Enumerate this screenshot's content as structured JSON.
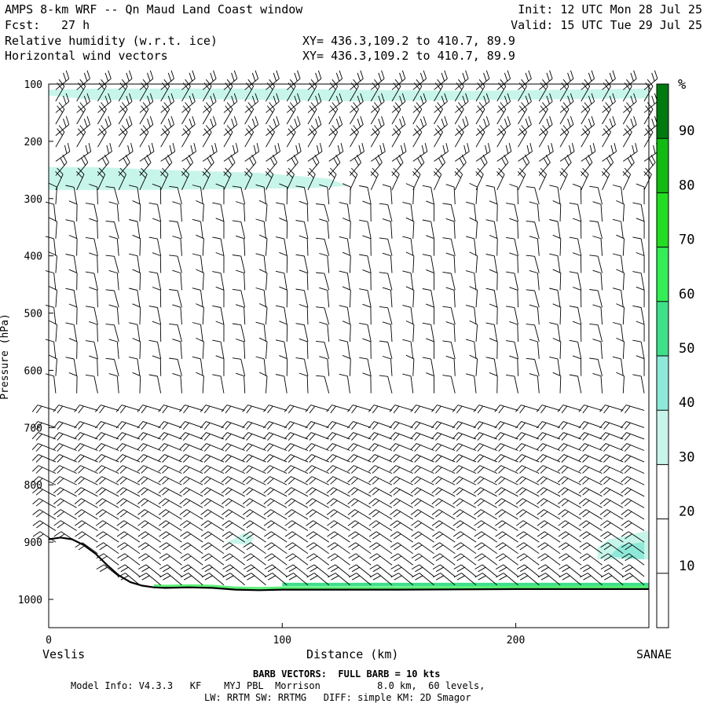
{
  "header": {
    "title": "AMPS 8-km WRF -- Qn Maud Land Coast window",
    "fcst_label": "Fcst:",
    "fcst_value": "27 h",
    "field1": "Relative humidity (w.r.t. ice)",
    "field2": "Horizontal wind vectors",
    "xy1": "XY= 436.3,109.2 to 410.7, 89.9",
    "xy2": "XY= 436.3,109.2 to 410.7, 89.9",
    "init": "Init: 12 UTC Mon 28 Jul 25",
    "valid": "Valid: 15 UTC Tue 29 Jul 25"
  },
  "footer": {
    "barb_note": "BARB VECTORS:  FULL BARB = 10 kts",
    "model_line1": "Model Info: V4.3.3   KF    MYJ PBL  Morrison          8.0 km,  60 levels,",
    "model_line2": "LW: RRTM SW: RRTMG   DIFF: simple KM: 2D Smagor"
  },
  "colors": {
    "rh_30_40": "#c8f5ea",
    "rh_40_50": "#8ee9d8",
    "rh_50_60": "#3fe08a",
    "rh_60_70": "#33ee55",
    "rh_70_80": "#22dd22",
    "rh_80_90": "#11bb11",
    "rh_90_100": "#007a10",
    "terrain": "#000000"
  },
  "chart_data": {
    "type": "cross-section",
    "xlabel": "Distance (km)",
    "ylabel": "Pressure (hPa)",
    "x_start_label": "Veslis",
    "x_end_label": "SANAE",
    "xlim": [
      0,
      257
    ],
    "ylim": [
      1050,
      100
    ],
    "x_ticks": [
      "0",
      "100",
      "200"
    ],
    "y_ticks": [
      "100",
      "200",
      "300",
      "400",
      "500",
      "600",
      "700",
      "800",
      "900",
      "1000"
    ],
    "colorbar": {
      "unit": "%",
      "levels": [
        10,
        20,
        30,
        40,
        50,
        60,
        70,
        80,
        90
      ],
      "tick_labels": [
        "10",
        "20",
        "30",
        "40",
        "50",
        "60",
        "70",
        "80",
        "90"
      ]
    },
    "terrain_surface": {
      "x": [
        0,
        5,
        10,
        15,
        20,
        25,
        30,
        35,
        40,
        45,
        50,
        60,
        70,
        80,
        90,
        100,
        150,
        200,
        257
      ],
      "p": [
        895,
        892,
        895,
        905,
        920,
        940,
        958,
        970,
        976,
        979,
        980,
        979,
        980,
        983,
        984,
        983,
        983,
        982,
        982
      ]
    },
    "rh_regions": [
      {
        "level": "30-40",
        "x": [
          0,
          20,
          60,
          100,
          130,
          180,
          257,
          257,
          180,
          130,
          100,
          60,
          20,
          0
        ],
        "p": [
          120,
          128,
          126,
          128,
          130,
          128,
          125,
          108,
          112,
          110,
          108,
          108,
          108,
          110
        ]
      },
      {
        "level": "30-40",
        "x": [
          0,
          40,
          80,
          110,
          128,
          120,
          90,
          50,
          20,
          0
        ],
        "p": [
          285,
          285,
          283,
          282,
          278,
          265,
          255,
          250,
          245,
          245
        ]
      },
      {
        "level": "30-40",
        "x": [
          79,
          84,
          88,
          86,
          80,
          76
        ],
        "p": [
          895,
          883,
          892,
          905,
          903,
          900
        ]
      },
      {
        "level": "30-40",
        "x": [
          235,
          257,
          257,
          240,
          235
        ],
        "p": [
          930,
          930,
          880,
          895,
          910
        ]
      },
      {
        "level": "40-50",
        "x": [
          240,
          255,
          255,
          245
        ],
        "p": [
          925,
          930,
          900,
          905
        ]
      },
      {
        "level": "50-60",
        "x": [
          100,
          257,
          257,
          100
        ],
        "p": [
          977,
          977,
          971,
          971
        ]
      }
    ],
    "barb_columns_km": [
      3,
      12,
      21,
      30,
      39,
      48,
      57,
      66,
      75,
      84,
      93,
      102,
      111,
      120,
      129,
      138,
      147,
      156,
      165,
      174,
      183,
      192,
      201,
      210,
      219,
      228,
      237,
      246,
      255
    ],
    "barb_levels_hPa": [
      110,
      130,
      150,
      170,
      190,
      210,
      235,
      260,
      285,
      310,
      340,
      370,
      400,
      430,
      460,
      490,
      520,
      550,
      580,
      610,
      640,
      670,
      700,
      720,
      740,
      760,
      780,
      800,
      820,
      840,
      860,
      880,
      900,
      920,
      940,
      960,
      975
    ]
  }
}
